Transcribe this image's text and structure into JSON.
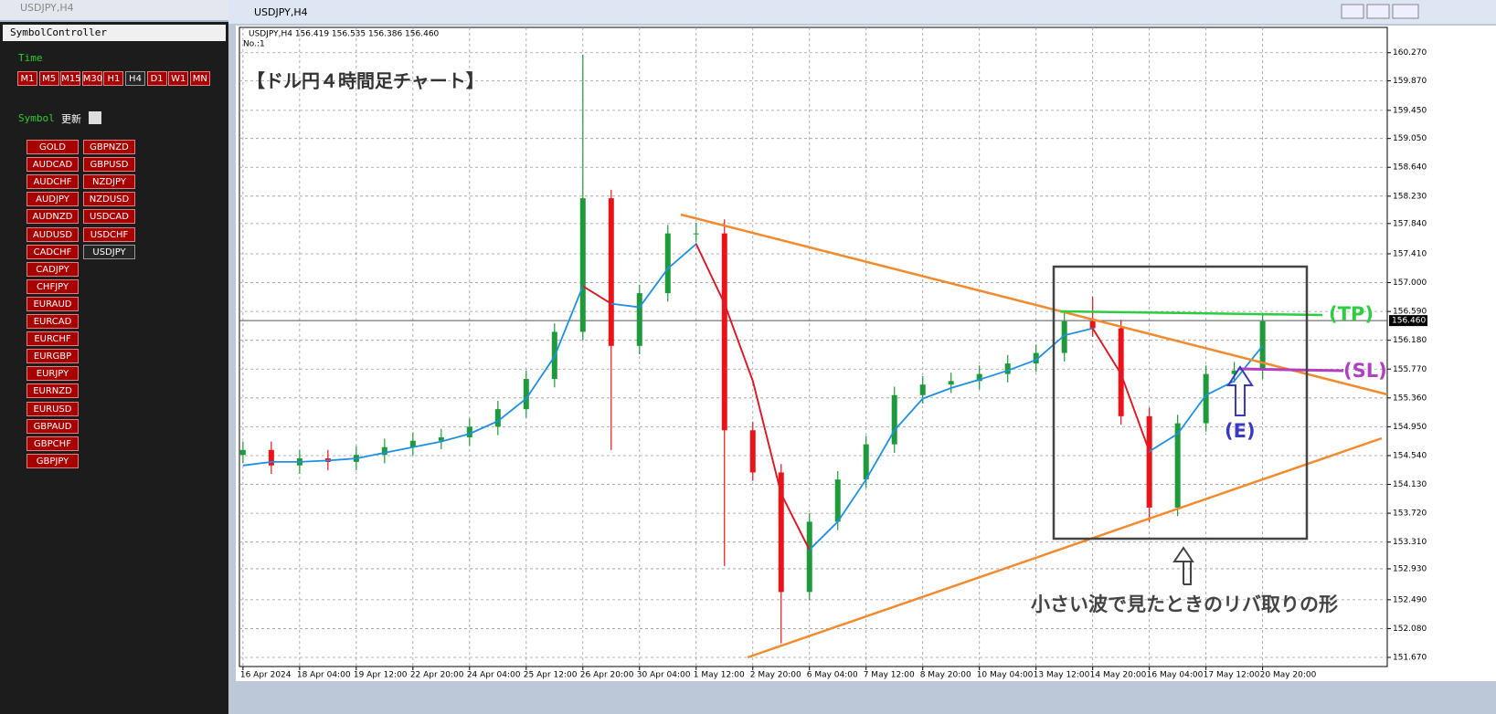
{
  "windows": {
    "back_title": "USDJPY,H4",
    "main_title": "USDJPY,H4"
  },
  "symbol_controller": {
    "title": "SymbolController",
    "time_label": "Time",
    "timeframes": [
      "M1",
      "M5",
      "M15",
      "M30",
      "H1",
      "H4",
      "D1",
      "W1",
      "MN"
    ],
    "active_timeframe": "H4",
    "symbol_label": "Symbol",
    "refresh": "更新",
    "symbols_left": [
      "GOLD",
      "AUDCAD",
      "AUDCHF",
      "AUDJPY",
      "AUDNZD",
      "AUDUSD",
      "CADCHF",
      "CADJPY",
      "CHFJPY",
      "EURAUD",
      "EURCAD",
      "EURCHF",
      "EURGBP",
      "EURJPY",
      "EURNZD",
      "EURUSD",
      "GBPAUD",
      "GBPCHF",
      "GBPJPY"
    ],
    "symbols_right": [
      "GBPNZD",
      "GBPUSD",
      "NZDJPY",
      "NZDUSD",
      "USDCAD",
      "USDCHF",
      "USDJPY"
    ],
    "active_symbol": "USDJPY"
  },
  "chart_data": {
    "type": "candlestick",
    "header": "USDJPY,H4  156.419 156.535 156.386 156.460",
    "subheader": "No.:1",
    "title": "【ドル円４時間足チャート】",
    "note": "小さい波で見たときのリバ取りの形",
    "tp_label": "(TP)",
    "sl_label": "(SL)",
    "entry_label": "(E)",
    "x": [
      0,
      4,
      8,
      12,
      16,
      20,
      24,
      28,
      32,
      36,
      40,
      44,
      48,
      52,
      56,
      60,
      64,
      68,
      72,
      76,
      80,
      84,
      88,
      92,
      96,
      100,
      104,
      108,
      112,
      116,
      120,
      124,
      128,
      132,
      136,
      140,
      144
    ],
    "open": [
      154.55,
      154.62,
      154.4,
      154.5,
      154.45,
      154.55,
      154.66,
      154.75,
      154.8,
      154.95,
      155.2,
      155.63,
      156.3,
      158.2,
      156.1,
      156.85,
      157.7,
      157.7,
      154.9,
      154.3,
      152.6,
      153.6,
      154.2,
      154.7,
      155.4,
      155.55,
      155.6,
      155.7,
      155.85,
      156.0,
      156.45,
      156.35,
      155.1,
      153.8,
      155.0,
      155.7,
      155.75
    ],
    "high": [
      154.74,
      154.74,
      154.62,
      154.62,
      154.67,
      154.78,
      154.87,
      154.92,
      155.07,
      155.32,
      155.75,
      156.42,
      160.24,
      158.32,
      156.97,
      157.82,
      157.85,
      157.9,
      155.02,
      154.42,
      153.72,
      154.32,
      154.82,
      155.52,
      155.67,
      155.72,
      155.82,
      155.97,
      156.12,
      156.57,
      156.8,
      156.47,
      155.22,
      155.12,
      155.82,
      155.87,
      156.54
    ],
    "low": [
      154.43,
      154.28,
      154.28,
      154.33,
      154.33,
      154.43,
      154.54,
      154.63,
      154.68,
      154.83,
      155.08,
      155.51,
      156.18,
      154.62,
      155.98,
      156.73,
      157.58,
      152.97,
      154.18,
      151.87,
      152.48,
      153.48,
      154.08,
      154.58,
      155.28,
      155.43,
      155.48,
      155.58,
      155.73,
      155.88,
      156.23,
      154.98,
      153.6,
      153.68,
      154.88,
      155.58,
      155.63
    ],
    "close": [
      154.62,
      154.4,
      154.5,
      154.45,
      154.55,
      154.66,
      154.75,
      154.8,
      154.95,
      155.2,
      155.63,
      156.3,
      158.2,
      156.1,
      156.85,
      157.7,
      157.7,
      154.9,
      154.3,
      152.6,
      153.6,
      154.2,
      154.7,
      155.4,
      155.55,
      155.6,
      155.7,
      155.85,
      156.0,
      156.45,
      156.35,
      155.1,
      153.8,
      155.0,
      155.7,
      155.75,
      156.45
    ],
    "up_color": "#1f9a3a",
    "down_color": "#e8141a",
    "series": [
      {
        "color": "#1e8fe0",
        "values": [
          154.4,
          154.45,
          154.45,
          154.47,
          154.5,
          154.58,
          154.66,
          154.74,
          154.85,
          155.03,
          155.35,
          155.95,
          156.95,
          156.7,
          156.65,
          157.2,
          157.55,
          156.7,
          155.6,
          154.0,
          153.2,
          153.6,
          154.2,
          154.9,
          155.35,
          155.5,
          155.62,
          155.75,
          155.9,
          156.25,
          156.35,
          155.7,
          154.6,
          154.85,
          155.4,
          155.6,
          156.1
        ]
      },
      {
        "color": "#e8141a",
        "values": [
          null,
          null,
          null,
          null,
          null,
          null,
          null,
          null,
          null,
          null,
          null,
          null,
          156.95,
          156.7,
          null,
          null,
          157.55,
          156.7,
          155.6,
          154.0,
          153.2,
          null,
          null,
          null,
          null,
          null,
          null,
          null,
          null,
          null,
          156.35,
          155.7,
          154.6,
          null,
          null,
          null,
          null
        ]
      }
    ],
    "current_price": {
      "value": 156.46,
      "label": "156.460"
    },
    "xlim": [
      -0.5,
      161.6
    ],
    "ylim": [
      151.54,
      160.63
    ],
    "grid": true,
    "yticks": [
      {
        "value": 160.27,
        "label": "160.270"
      },
      {
        "value": 159.87,
        "label": "159.870"
      },
      {
        "value": 159.45,
        "label": "159.450"
      },
      {
        "value": 159.05,
        "label": "159.050"
      },
      {
        "value": 158.64,
        "label": "158.640"
      },
      {
        "value": 158.23,
        "label": "158.230"
      },
      {
        "value": 157.84,
        "label": "157.840"
      },
      {
        "value": 157.41,
        "label": "157.410"
      },
      {
        "value": 157.0,
        "label": "157.000"
      },
      {
        "value": 156.59,
        "label": "156.590"
      },
      {
        "value": 156.18,
        "label": "156.180"
      },
      {
        "value": 155.77,
        "label": "155.770"
      },
      {
        "value": 155.36,
        "label": "155.360"
      },
      {
        "value": 154.95,
        "label": "154.950"
      },
      {
        "value": 154.54,
        "label": "154.540"
      },
      {
        "value": 154.13,
        "label": "154.130"
      },
      {
        "value": 153.72,
        "label": "153.720"
      },
      {
        "value": 153.31,
        "label": "153.310"
      },
      {
        "value": 152.93,
        "label": "152.930"
      },
      {
        "value": 152.49,
        "label": "152.490"
      },
      {
        "value": 152.08,
        "label": "152.080"
      },
      {
        "value": 151.67,
        "label": "151.670"
      }
    ],
    "xticks": [
      {
        "value": 0,
        "label": "16 Apr 2024"
      },
      {
        "value": 8,
        "label": "18 Apr 04:00"
      },
      {
        "value": 16,
        "label": "19 Apr 12:00"
      },
      {
        "value": 24,
        "label": "22 Apr 20:00"
      },
      {
        "value": 32,
        "label": "24 Apr 04:00"
      },
      {
        "value": 40,
        "label": "25 Apr 12:00"
      },
      {
        "value": 48,
        "label": "26 Apr 20:00"
      },
      {
        "value": 56,
        "label": "30 Apr 04:00"
      },
      {
        "value": 64,
        "label": "1 May 12:00"
      },
      {
        "value": 72,
        "label": "2 May 20:00"
      },
      {
        "value": 80,
        "label": "6 May 04:00"
      },
      {
        "value": 88,
        "label": "7 May 12:00"
      },
      {
        "value": 96,
        "label": "8 May 20:00"
      },
      {
        "value": 104,
        "label": "10 May 04:00"
      },
      {
        "value": 112,
        "label": "13 May 12:00"
      },
      {
        "value": 120,
        "label": "14 May 20:00"
      },
      {
        "value": 128,
        "label": "16 May 04:00"
      },
      {
        "value": 136,
        "label": "17 May 12:00"
      },
      {
        "value": 144,
        "label": "20 May 20:00"
      }
    ]
  }
}
